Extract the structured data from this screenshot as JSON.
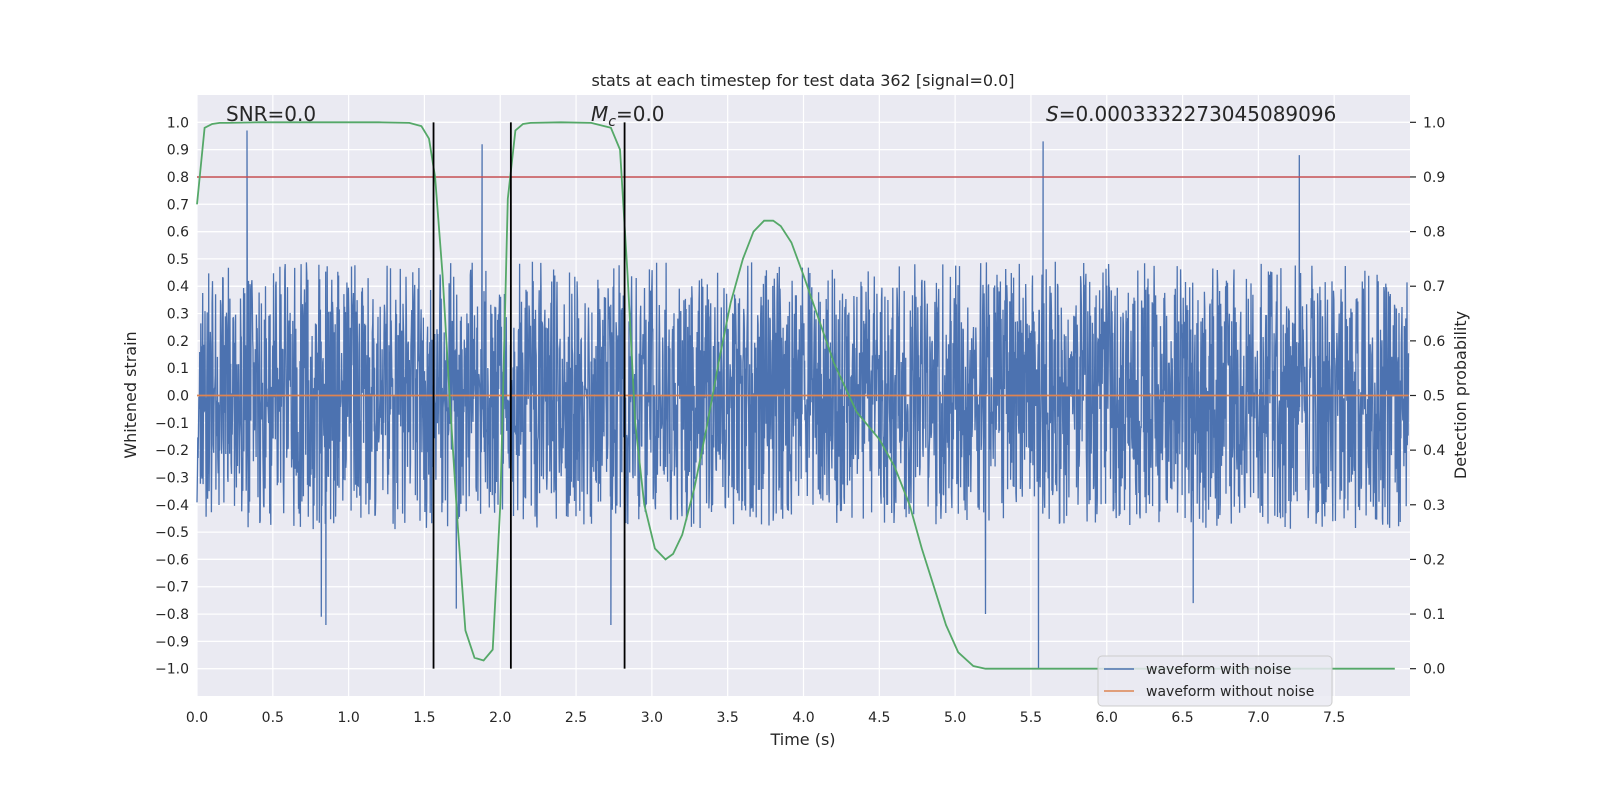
{
  "chart_data": {
    "type": "line",
    "title": "stats at each timestep for test data 362 [signal=0.0]",
    "xlabel": "Time (s)",
    "ylabel": "Whitened strain",
    "ylabel_right": "Detection probability",
    "xlim": [
      0.0,
      8.0
    ],
    "ylim": [
      -1.1,
      1.1
    ],
    "ylim_right": [
      -0.05,
      1.05
    ],
    "xticks": [
      0.0,
      0.5,
      1.0,
      1.5,
      2.0,
      2.5,
      3.0,
      3.5,
      4.0,
      4.5,
      5.0,
      5.5,
      6.0,
      6.5,
      7.0,
      7.5
    ],
    "xtick_labels": [
      "0.0",
      "0.5",
      "1.0",
      "1.5",
      "2.0",
      "2.5",
      "3.0",
      "3.5",
      "4.0",
      "4.5",
      "5.0",
      "5.5",
      "6.0",
      "6.5",
      "7.0",
      "7.5"
    ],
    "yticks": [
      1.0,
      0.9,
      0.8,
      0.7,
      0.6,
      0.5,
      0.4,
      0.3,
      0.2,
      0.1,
      0.0,
      -0.1,
      -0.2,
      -0.3,
      -0.4,
      -0.5,
      -0.6,
      -0.7,
      -0.8,
      -0.9,
      -1.0
    ],
    "ytick_labels": [
      "1.0",
      "0.9",
      "0.8",
      "0.7",
      "0.6",
      "0.5",
      "0.4",
      "0.3",
      "0.2",
      "0.1",
      "0.0",
      "−0.1",
      "−0.2",
      "−0.3",
      "−0.4",
      "−0.5",
      "−0.6",
      "−0.7",
      "−0.8",
      "−0.9",
      "−1.0"
    ],
    "yticks_right": [
      1.0,
      0.9,
      0.8,
      0.7,
      0.6,
      0.5,
      0.4,
      0.3,
      0.2,
      0.1,
      0.0
    ],
    "ytick_labels_right": [
      "1.0",
      "0.9",
      "0.8",
      "0.7",
      "0.6",
      "0.5",
      "0.4",
      "0.3",
      "0.2",
      "0.1",
      "0.0"
    ],
    "annotations": {
      "snr": "SNR=0.0",
      "mc_symbol": "M",
      "mc_sub": "c",
      "mc_value": "=0.0",
      "s_symbol": "S",
      "s_value": "=0.0003332273045089096"
    },
    "legend": {
      "placement": "lower-right",
      "entries": [
        "waveform with noise",
        "waveform without noise"
      ]
    },
    "noise": {
      "name": "waveform with noise",
      "color": "#4c72b0",
      "core_amplitude": 0.22,
      "typical_extreme_low": -0.45,
      "typical_extreme_high": 0.4,
      "notable_spikes": [
        {
          "x": 0.33,
          "y": 0.97
        },
        {
          "x": 1.88,
          "y": 0.92
        },
        {
          "x": 5.58,
          "y": 0.93
        },
        {
          "x": 7.27,
          "y": 0.88
        },
        {
          "x": 5.55,
          "y": -1.0
        },
        {
          "x": 0.85,
          "y": -0.84
        },
        {
          "x": 0.82,
          "y": -0.81
        },
        {
          "x": 2.73,
          "y": -0.84
        },
        {
          "x": 1.71,
          "y": -0.78
        },
        {
          "x": 5.2,
          "y": -0.8
        },
        {
          "x": 6.57,
          "y": -0.76
        }
      ]
    },
    "clean_waveform": {
      "name": "waveform without noise",
      "color": "#dd8452",
      "value": 0.0
    },
    "threshold": {
      "color": "#c44e52",
      "value_right_axis": 0.9
    },
    "detection_probability": {
      "color": "#55a868",
      "x": [
        0.0,
        0.05,
        0.1,
        0.15,
        0.2,
        0.4,
        0.8,
        1.2,
        1.4,
        1.48,
        1.53,
        1.57,
        1.62,
        1.67,
        1.72,
        1.77,
        1.83,
        1.89,
        1.95,
        2.0,
        2.05,
        2.1,
        2.15,
        2.2,
        2.4,
        2.6,
        2.73,
        2.79,
        2.84,
        2.89,
        2.95,
        3.02,
        3.09,
        3.14,
        3.2,
        3.28,
        3.36,
        3.44,
        3.52,
        3.6,
        3.67,
        3.74,
        3.8,
        3.85,
        3.92,
        4.0,
        4.1,
        4.2,
        4.35,
        4.5,
        4.6,
        4.7,
        4.78,
        4.86,
        4.94,
        5.02,
        5.12,
        5.2,
        5.5,
        6.5,
        7.9
      ],
      "y": [
        0.85,
        0.99,
        0.997,
        0.999,
        0.999,
        1.0,
        1.0,
        1.0,
        0.999,
        0.993,
        0.97,
        0.9,
        0.72,
        0.48,
        0.26,
        0.07,
        0.02,
        0.015,
        0.035,
        0.3,
        0.86,
        0.985,
        0.997,
        0.999,
        1.0,
        0.999,
        0.99,
        0.95,
        0.72,
        0.45,
        0.3,
        0.22,
        0.2,
        0.21,
        0.245,
        0.33,
        0.44,
        0.56,
        0.67,
        0.75,
        0.8,
        0.82,
        0.82,
        0.81,
        0.78,
        0.72,
        0.64,
        0.56,
        0.47,
        0.42,
        0.37,
        0.3,
        0.22,
        0.15,
        0.08,
        0.03,
        0.005,
        0.0,
        0.0,
        0.0,
        0.0
      ]
    },
    "vertical_markers": {
      "color": "#000000",
      "x": [
        1.56,
        2.07,
        2.82
      ],
      "y_range": [
        -1.0,
        1.0
      ]
    }
  }
}
